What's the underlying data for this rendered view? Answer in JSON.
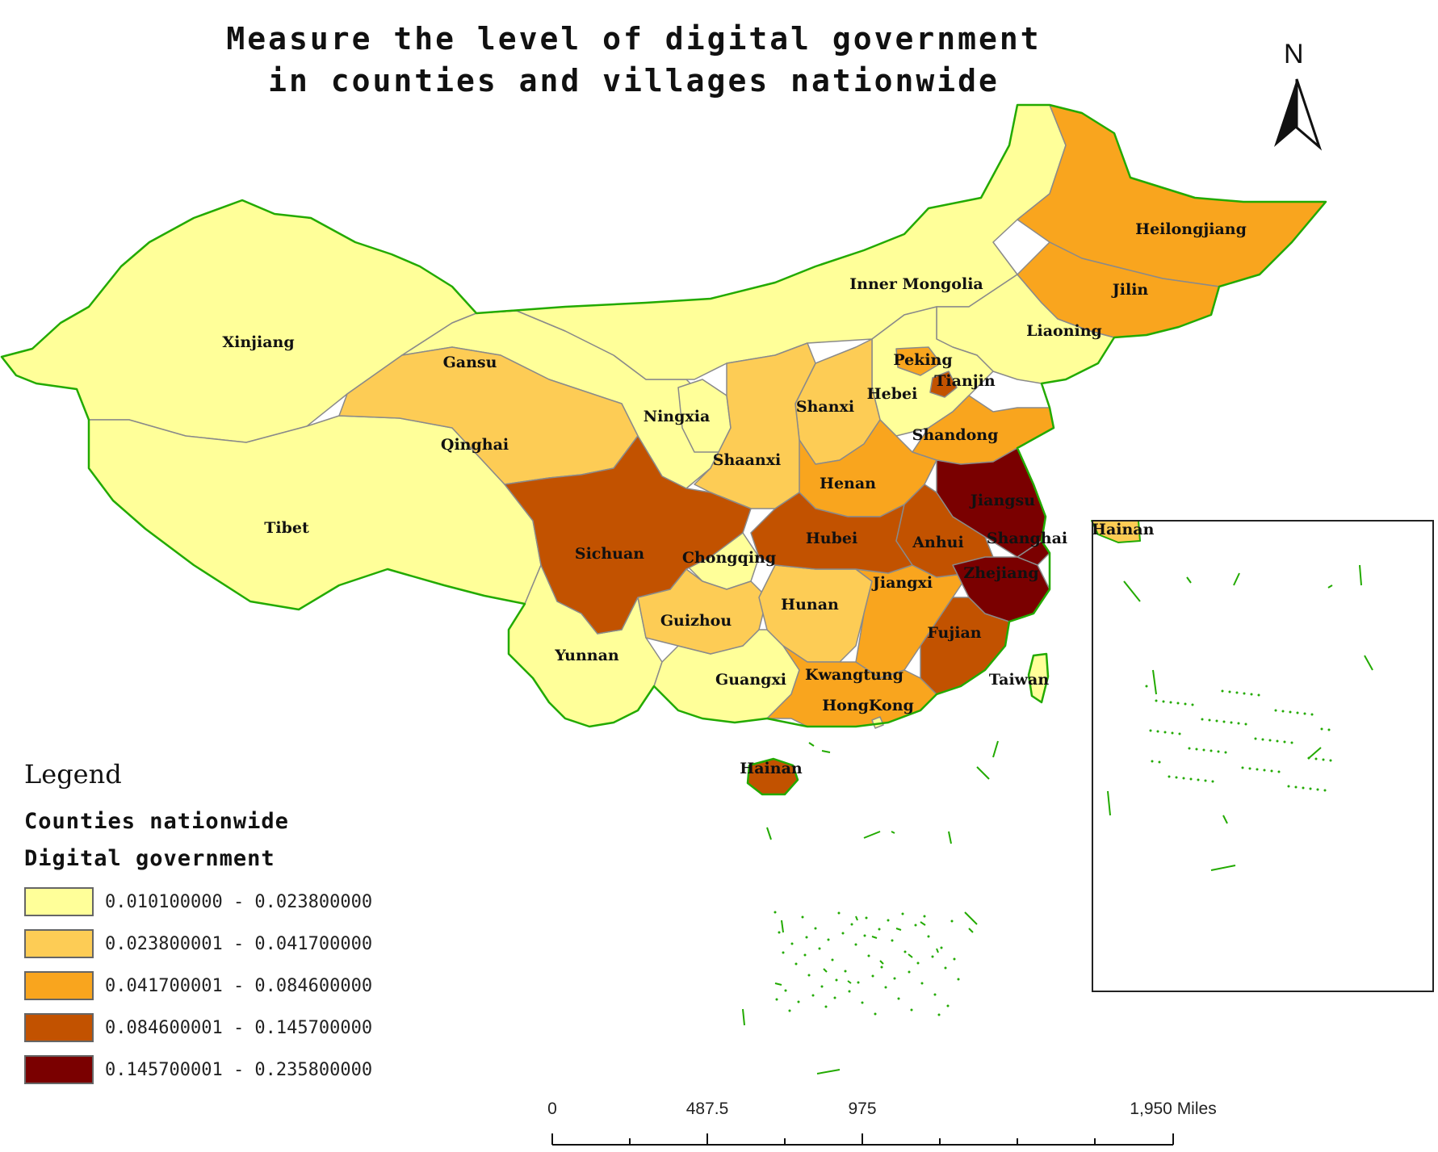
{
  "map": {
    "title": "Measure the level of digital government\nin counties and villages nationwide",
    "north_label": "N",
    "colors": {
      "class1": "#ffff99",
      "class2": "#fdcc55",
      "class3": "#f9a51e",
      "class4": "#c25200",
      "class5": "#7a0000",
      "border_coast": "#22aa00",
      "border_inner": "#8a8a8a"
    },
    "provinces": [
      {
        "name": "Xinjiang",
        "class": 1
      },
      {
        "name": "Gansu",
        "class": 1
      },
      {
        "name": "Inner Mongolia",
        "class": 1
      },
      {
        "name": "Liaoning",
        "class": 1
      },
      {
        "name": "Ningxia",
        "class": 1
      },
      {
        "name": "Hebei",
        "class": 1
      },
      {
        "name": "Tibet",
        "class": 1
      },
      {
        "name": "Yunnan",
        "class": 1
      },
      {
        "name": "Guangxi",
        "class": 1
      },
      {
        "name": "Chongqing",
        "class": 1
      },
      {
        "name": "Qinghai",
        "class": 2
      },
      {
        "name": "Shanxi",
        "class": 2
      },
      {
        "name": "Shaanxi",
        "class": 2
      },
      {
        "name": "Guizhou",
        "class": 2
      },
      {
        "name": "Hunan",
        "class": 2
      },
      {
        "name": "Heilongjiang",
        "class": 3
      },
      {
        "name": "Jilin",
        "class": 3
      },
      {
        "name": "Shandong",
        "class": 3
      },
      {
        "name": "Henan",
        "class": 3
      },
      {
        "name": "Jiangxi",
        "class": 3
      },
      {
        "name": "Kwangtung",
        "class": 3
      },
      {
        "name": "Peking",
        "class": 3
      },
      {
        "name": "Sichuan",
        "class": 4
      },
      {
        "name": "Hubei",
        "class": 4
      },
      {
        "name": "Anhui",
        "class": 4
      },
      {
        "name": "Fujian",
        "class": 4
      },
      {
        "name": "Hainan",
        "class": 4
      },
      {
        "name": "Tianjin",
        "class": 4
      },
      {
        "name": "Jiangsu",
        "class": 5
      },
      {
        "name": "Shanghai",
        "class": 5
      },
      {
        "name": "Zhejiang",
        "class": 5
      },
      {
        "name": "Taiwan",
        "class": 0
      },
      {
        "name": "HongKong",
        "class": 0
      }
    ],
    "inset_label": "Hainan"
  },
  "legend": {
    "title": "Legend",
    "layer": "Counties nationwide",
    "field": "Digital government",
    "classes": [
      {
        "range": "0.010100000 - 0.023800000",
        "color": "#ffff99"
      },
      {
        "range": "0.023800001 - 0.041700000",
        "color": "#fdcc55"
      },
      {
        "range": "0.041700001 - 0.084600000",
        "color": "#f9a51e"
      },
      {
        "range": "0.084600001 - 0.145700000",
        "color": "#c25200"
      },
      {
        "range": "0.145700001 - 0.235800000",
        "color": "#7a0000"
      }
    ]
  },
  "scale_bar": {
    "labels": [
      "0",
      "487.5",
      "975",
      "1,950 Miles"
    ]
  }
}
